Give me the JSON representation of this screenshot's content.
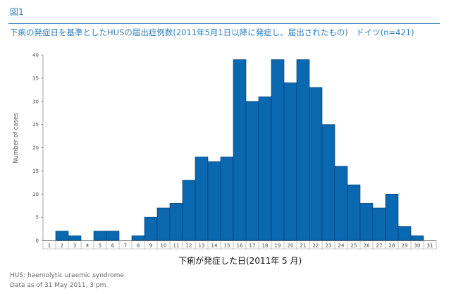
{
  "header": {
    "figure_label": "図1",
    "title": "下痢の発症日を基準としたHUSの届出症例数(2011年5月1日以降に発症し、届出されたもの)　ドイツ(n=421)"
  },
  "chart_data": {
    "type": "bar",
    "title": "下痢の発症日を基準としたHUSの届出症例数(2011年5月1日以降に発症し、届出されたもの)　ドイツ(n=421)",
    "xlabel": "下痢が発症した日(2011年 5 月)",
    "ylabel": "Number of cases",
    "ylim": [
      0,
      40
    ],
    "yticks": [
      0,
      5,
      10,
      15,
      20,
      25,
      30,
      35,
      40
    ],
    "categories": [
      "1",
      "2",
      "3",
      "4",
      "5",
      "6",
      "7",
      "8",
      "9",
      "10",
      "11",
      "12",
      "13",
      "14",
      "15",
      "16",
      "17",
      "18",
      "19",
      "20",
      "21",
      "22",
      "23",
      "24",
      "25",
      "26",
      "27",
      "28",
      "29",
      "30",
      "31"
    ],
    "values": [
      0,
      2,
      1,
      0,
      2,
      2,
      0,
      1,
      5,
      7,
      8,
      13,
      18,
      17,
      18,
      39,
      30,
      31,
      39,
      34,
      39,
      33,
      25,
      16,
      12,
      8,
      7,
      10,
      3,
      1,
      0
    ],
    "grid": false,
    "bar_color": "#0a68b0"
  },
  "footnotes": {
    "line1": "HUS: haemolytic uraemic syndrome.",
    "line2": "Data as of 31 May 2011, 3 pm."
  },
  "colors": {
    "accent": "#2a7fc0",
    "bar": "#0a68b0"
  }
}
